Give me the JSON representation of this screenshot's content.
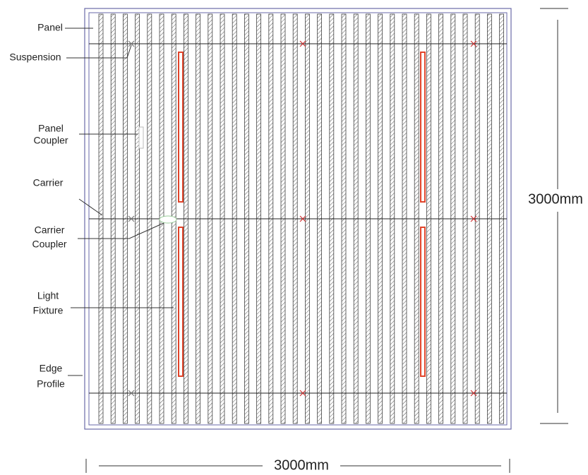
{
  "callouts": [
    {
      "lines": [
        "Panel"
      ]
    },
    {
      "lines": [
        "Suspension"
      ]
    },
    {
      "lines": [
        "Panel",
        "Coupler"
      ]
    },
    {
      "lines": [
        "Carrier"
      ]
    },
    {
      "lines": [
        "Carrier",
        "Coupler"
      ]
    },
    {
      "lines": [
        "Light",
        "Fixture"
      ]
    },
    {
      "lines": [
        "Edge",
        "Profile"
      ]
    }
  ],
  "dimensions": {
    "height": "3000mm",
    "width": "3000mm"
  }
}
